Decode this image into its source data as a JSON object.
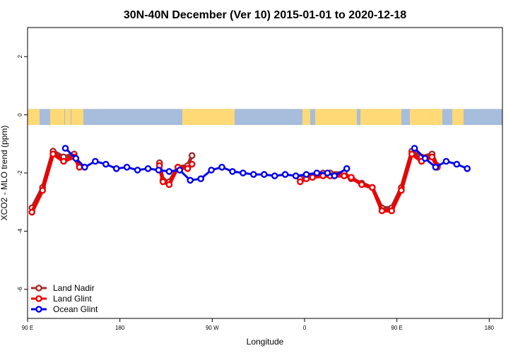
{
  "chart_data": {
    "type": "line",
    "title": "30N-40N December (Ver 10)   2015-01-01 to 2020-12-18",
    "xlabel": "Longitude",
    "ylabel": "XCO2 - MLO trend (ppm)",
    "xlim": [
      -90,
      180
    ],
    "ylim": [
      -7,
      3
    ],
    "x_ticks": [
      {
        "value": -90,
        "label": "90 E"
      },
      {
        "value": -37.5,
        "label": "180"
      },
      {
        "value": 15,
        "label": "90 W"
      },
      {
        "value": 67.5,
        "label": "0"
      },
      {
        "value": 120,
        "label": "90 E"
      },
      {
        "value": 172.5,
        "label": "180"
      }
    ],
    "y_ticks": [
      {
        "value": -6,
        "label": "-6"
      },
      {
        "value": -4,
        "label": "-4"
      },
      {
        "value": -2,
        "label": "-2"
      },
      {
        "value": 0,
        "label": "0"
      },
      {
        "value": 2,
        "label": "2"
      }
    ],
    "legend_position": "bottom-left",
    "map_band": {
      "y_top": 0.2,
      "y_bottom": -0.35,
      "ocean_color": "#A6BDDB",
      "land_color": "#FED976"
    },
    "series": [
      {
        "name": "Land Nadir",
        "color": "#A52A2A",
        "stroke_width": 5,
        "segments": [
          [
            [
              -87.5,
              -3.2
            ],
            [
              -81.5,
              -2.5
            ],
            [
              -75.5,
              -1.25
            ],
            [
              -69.5,
              -1.45
            ],
            [
              -63.5,
              -1.35
            ],
            [
              -60.5,
              -1.75
            ]
          ],
          [
            [
              -15,
              -1.65
            ],
            [
              -13,
              -2.25
            ],
            [
              -9.5,
              -2.3
            ],
            [
              -4.5,
              -1.8
            ],
            [
              1,
              -1.75
            ],
            [
              3.5,
              -1.4
            ]
          ],
          [
            [
              65,
              -2.2
            ],
            [
              68.5,
              -2.15
            ],
            [
              72,
              -2.1
            ],
            [
              78,
              -2.0
            ],
            [
              82,
              -2.0
            ],
            [
              90,
              -2.0
            ],
            [
              94,
              -2.2
            ],
            [
              100,
              -2.35
            ],
            [
              106,
              -2.5
            ],
            [
              111.5,
              -3.2
            ],
            [
              117,
              -3.2
            ],
            [
              122.5,
              -2.5
            ],
            [
              128.5,
              -1.25
            ],
            [
              134,
              -1.45
            ],
            [
              140,
              -1.35
            ],
            [
              143,
              -1.75
            ]
          ]
        ]
      },
      {
        "name": "Land Glint",
        "color": "#EE0000",
        "stroke_width": 5,
        "segments": [
          [
            [
              -87.5,
              -3.35
            ],
            [
              -81.5,
              -2.6
            ],
            [
              -75.5,
              -1.35
            ],
            [
              -69.5,
              -1.6
            ],
            [
              -63.5,
              -1.45
            ],
            [
              -60.5,
              -1.8
            ]
          ],
          [
            [
              -15,
              -1.75
            ],
            [
              -13,
              -2.3
            ],
            [
              -9.5,
              -2.4
            ],
            [
              -4.5,
              -1.8
            ],
            [
              1,
              -1.85
            ],
            [
              3.5,
              -1.7
            ]
          ],
          [
            [
              65,
              -2.3
            ],
            [
              68.5,
              -2.2
            ],
            [
              72,
              -2.15
            ],
            [
              78,
              -2.1
            ],
            [
              82,
              -2.1
            ],
            [
              90,
              -2.1
            ],
            [
              94,
              -2.15
            ],
            [
              100,
              -2.4
            ],
            [
              106,
              -2.5
            ],
            [
              111.5,
              -3.3
            ],
            [
              117,
              -3.3
            ],
            [
              122.5,
              -2.6
            ],
            [
              128.5,
              -1.35
            ],
            [
              134,
              -1.6
            ],
            [
              140,
              -1.45
            ],
            [
              143,
              -1.8
            ]
          ]
        ]
      },
      {
        "name": "Ocean Glint",
        "color": "#0000EE",
        "stroke_width": 3,
        "segments": [
          [
            [
              -68.5,
              -1.15
            ],
            [
              -62.5,
              -1.5
            ],
            [
              -57.5,
              -1.8
            ],
            [
              -51.5,
              -1.6
            ],
            [
              -45.5,
              -1.7
            ],
            [
              -39.5,
              -1.85
            ],
            [
              -33.5,
              -1.8
            ],
            [
              -27.5,
              -1.9
            ],
            [
              -21.5,
              -1.85
            ],
            [
              -15.5,
              -1.9
            ],
            [
              -9.5,
              -1.95
            ],
            [
              -3.5,
              -1.9
            ],
            [
              2.5,
              -2.25
            ],
            [
              8.5,
              -2.2
            ],
            [
              14.5,
              -1.9
            ],
            [
              20.5,
              -1.8
            ],
            [
              26.5,
              -1.95
            ],
            [
              32.5,
              -2.0
            ],
            [
              38.5,
              -2.05
            ],
            [
              44.5,
              -2.05
            ],
            [
              50.5,
              -2.1
            ],
            [
              56.5,
              -2.05
            ],
            [
              62.5,
              -2.1
            ],
            [
              68.5,
              -2.05
            ],
            [
              74.5,
              -2.0
            ],
            [
              80.5,
              -2.0
            ],
            [
              84.5,
              -2.1
            ],
            [
              91.5,
              -1.85
            ]
          ],
          [
            [
              130,
              -1.15
            ],
            [
              136,
              -1.5
            ],
            [
              142,
              -1.8
            ],
            [
              148,
              -1.6
            ],
            [
              154,
              -1.7
            ],
            [
              160,
              -1.85
            ]
          ]
        ]
      }
    ]
  }
}
